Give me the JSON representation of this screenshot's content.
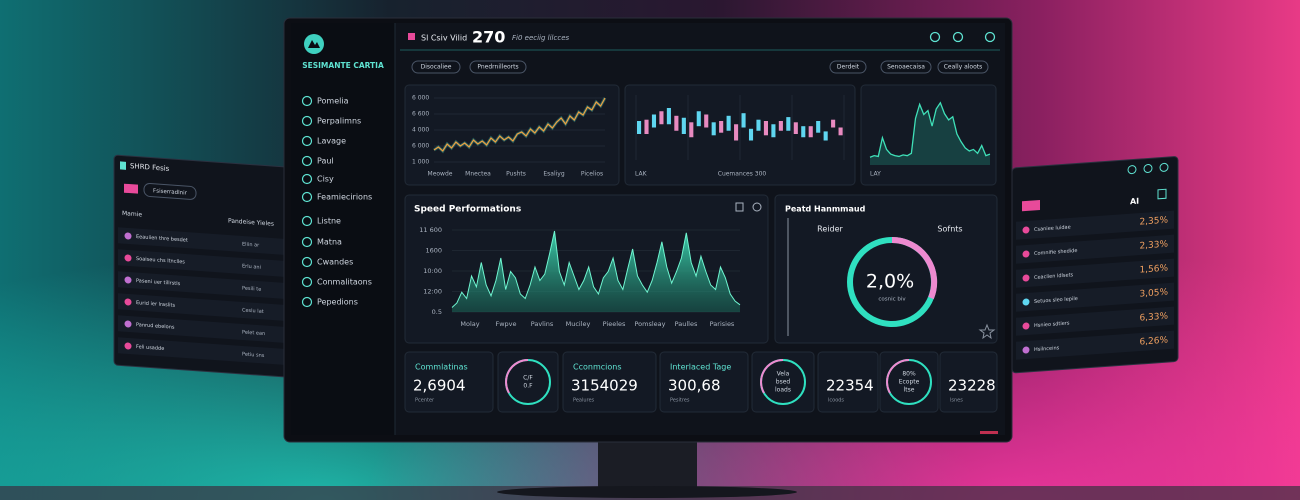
{
  "brand": "SESIMANTE CARTIA",
  "header": {
    "title": "Sl Csiv Vilid",
    "number": 270,
    "subtitle": "Fi0 eeciig lilcces"
  },
  "nav": [
    "Pomelia",
    "Perpalimns",
    "Lavage",
    "Paul",
    "Cisy",
    "Feamiecirions",
    "Listne",
    "Matna",
    "Cwandes",
    "Conmalitaons",
    "Pepedions"
  ],
  "pills_left": [
    "Disocaliee",
    "Pnedrnilleorts"
  ],
  "pills_right": [
    "Derdeit",
    "Senoaecaisa",
    "Ceally aloots"
  ],
  "charts": {
    "trend": {
      "y_labels": [
        "6 000",
        "6 600",
        "4 000",
        "6 000",
        "1 000"
      ],
      "x_labels": [
        "Meowde",
        "Mnectea",
        "Pushts",
        "Esaliyg",
        "Picelios"
      ],
      "ylim": [
        0,
        70
      ],
      "values": [
        12,
        15,
        11,
        18,
        14,
        20,
        16,
        19,
        15,
        22,
        18,
        21,
        17,
        24,
        20,
        26,
        22,
        25,
        21,
        28,
        30,
        26,
        33,
        29,
        35,
        31,
        38,
        34,
        40,
        44,
        38,
        46,
        42,
        50,
        47,
        55,
        52,
        60,
        56,
        64
      ]
    },
    "candles": {
      "labels": [
        "LAK",
        "Cuemances 300"
      ],
      "ylim": [
        0,
        100
      ],
      "open": [
        60,
        40,
        70,
        55,
        80,
        45,
        65,
        35,
        75,
        50,
        58,
        42,
        68,
        30,
        72,
        48,
        62,
        38,
        55,
        45,
        66,
        40,
        52,
        35,
        60,
        44,
        50,
        38
      ],
      "close": [
        40,
        62,
        50,
        75,
        55,
        68,
        40,
        58,
        52,
        70,
        38,
        60,
        45,
        55,
        50,
        30,
        45,
        60,
        35,
        60,
        45,
        58,
        35,
        52,
        42,
        30,
        62,
        50
      ]
    },
    "pulse": {
      "label": "LAY",
      "ylim": [
        0,
        90
      ],
      "values": [
        10,
        12,
        11,
        35,
        20,
        14,
        12,
        11,
        13,
        12,
        15,
        60,
        78,
        65,
        70,
        50,
        72,
        80,
        66,
        58,
        62,
        40,
        30,
        22,
        18,
        20,
        15,
        25,
        12,
        14
      ]
    },
    "speed": {
      "title": "Speed Performations",
      "y_labels": [
        "11 600",
        "1600",
        "10:00",
        "12:00",
        "0.5"
      ],
      "x_labels": [
        "Molay",
        "Fwpve",
        "Pavlins",
        "Muciley",
        "Pieeles",
        "Pomsleay",
        "Paulles",
        "Parisies"
      ],
      "ylim": [
        0,
        100
      ],
      "values": [
        5,
        10,
        22,
        15,
        40,
        28,
        55,
        30,
        18,
        35,
        60,
        25,
        45,
        38,
        20,
        15,
        30,
        50,
        35,
        42,
        65,
        90,
        45,
        30,
        55,
        40,
        25,
        35,
        50,
        28,
        20,
        38,
        45,
        60,
        35,
        25,
        48,
        70,
        40,
        30,
        22,
        35,
        55,
        78,
        50,
        32,
        45,
        60,
        88,
        55,
        40,
        62,
        45,
        30,
        25,
        50,
        38,
        20,
        12,
        8
      ]
    }
  },
  "gauge": {
    "title": "Peatd Hanmmaud",
    "left": "Reider",
    "right": "Sofnts",
    "center": "2,0%",
    "sub": "cosnic  biv"
  },
  "cards": [
    {
      "label": "Commlatinas",
      "value": "2,6904",
      "sub": "Pcenter"
    },
    {
      "label": "Cconmcions",
      "value": "3154029",
      "sub": "Pealures"
    },
    {
      "label": "Interlaced Tage",
      "value": "300,68",
      "sub": "Pesitres"
    },
    {
      "value": "22354",
      "sub": "lcoods"
    },
    {
      "value": "23228",
      "sub": "lsnes"
    }
  ],
  "rings": [
    [
      "C/F",
      "0.F"
    ],
    [
      "Vela",
      "bsed",
      "loads"
    ],
    [
      "80%",
      "Ecopte",
      "ltse"
    ]
  ],
  "left_panel": {
    "title": "SHRD Fesis",
    "button": "Fsiserradlnir",
    "col1": "Mamie",
    "col2": "Pandeise Yieles",
    "rows": [
      [
        "Eeauiien thre besdet",
        "Eliin ar"
      ],
      [
        "Soaiseu chs ltnclles",
        "Erlu ani"
      ],
      [
        "Paseni uer tillrstls",
        "Pesili te"
      ],
      [
        "Eurid ier lraslits",
        "Ceslu lat"
      ],
      [
        "Panrud ebelons",
        "Pelet ean"
      ],
      [
        "Feli usadde",
        "Petiu sns"
      ]
    ]
  },
  "right_panel": {
    "head": "AI",
    "rows": [
      [
        "Csaniee luidae",
        "2,35%"
      ],
      [
        "Comnifie shedide",
        "2,33%"
      ],
      [
        "Ceaclien ldlsets",
        "1,56%"
      ],
      [
        "Setuos sleo lepile",
        "3,05%"
      ],
      [
        "Hsnieo sdtiers",
        "6,33%"
      ],
      [
        "Hsilnceins",
        "6,26%"
      ]
    ]
  }
}
